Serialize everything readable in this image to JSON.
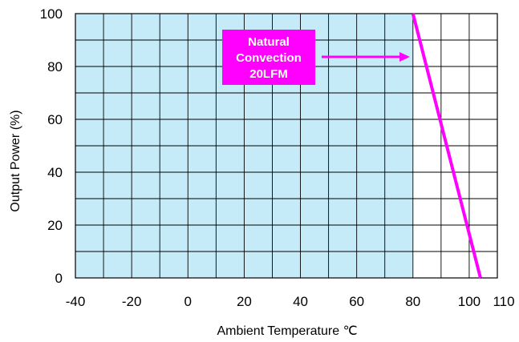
{
  "chart_data": {
    "type": "line",
    "title": "",
    "xlabel": "Ambient Temperature ℃",
    "ylabel": "Output Power (%)",
    "xlim": [
      -40,
      110
    ],
    "ylim": [
      0,
      100
    ],
    "x_ticks": [
      "-40",
      "-20",
      "0",
      "20",
      "40",
      "60",
      "80",
      "100",
      "110"
    ],
    "y_ticks": [
      "0",
      "20",
      "40",
      "60",
      "80",
      "100"
    ],
    "grid": true,
    "safe_region": {
      "x_from": -40,
      "x_to": 80,
      "color": "#c5ebf9"
    },
    "series": [
      {
        "name": "",
        "color": "#ff00ff",
        "x": [
          80,
          104
        ],
        "y": [
          100,
          0
        ]
      }
    ],
    "annotation": {
      "lines": [
        "Natural",
        "Convection",
        "20LFM"
      ],
      "color": "#ff00ff",
      "text_color": "#ffffff"
    }
  }
}
